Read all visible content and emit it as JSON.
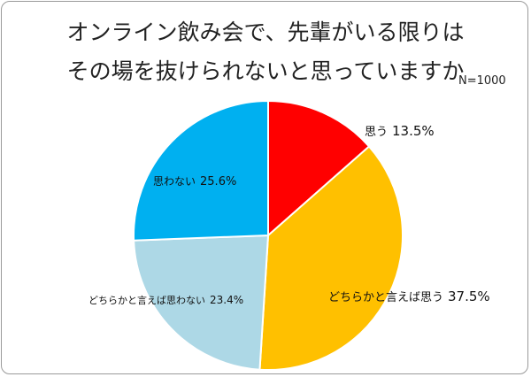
{
  "chart_data": {
    "type": "pie",
    "title_line1": "オンライン飲み会で、先輩がいる限りは",
    "title_line2": "その場を抜けられないと思っていますか",
    "note": "N=1000",
    "slices": [
      {
        "name": "思う",
        "value": 13.5,
        "value_label": "13.5%",
        "color": "#ff0000"
      },
      {
        "name": "どちらかと言えば思う",
        "value": 37.5,
        "value_label": "37.5%",
        "color": "#ffc000"
      },
      {
        "name": "どちらかと言えば思わない",
        "value": 23.4,
        "value_label": "23.4%",
        "color": "#add8e6"
      },
      {
        "name": "思わない",
        "value": 25.6,
        "value_label": "25.6%",
        "color": "#00b0f0"
      }
    ]
  }
}
